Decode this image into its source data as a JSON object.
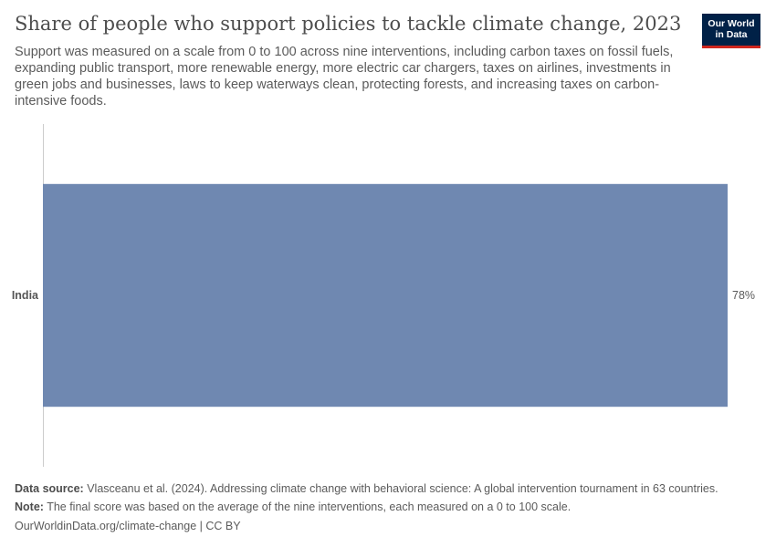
{
  "header": {
    "title": "Share of people who support policies to tackle climate change, 2023",
    "subtitle": "Support was measured on a scale from 0 to 100 across nine interventions, including carbon taxes on fossil fuels, expanding public transport, more renewable energy, more electric car chargers, taxes on airlines, investments in green jobs and businesses, laws to keep waterways clean, protecting forests, and increasing taxes on carbon-intensive foods."
  },
  "logo": {
    "line1": "Our World",
    "line2": "in Data"
  },
  "chart_data": {
    "type": "bar",
    "orientation": "horizontal",
    "categories": [
      "India"
    ],
    "values": [
      78
    ],
    "value_labels": [
      "78%"
    ],
    "xlim": [
      0,
      78
    ],
    "bar_color": "#6f88b1"
  },
  "footer": {
    "source_label": "Data source:",
    "source_text": " Vlasceanu et al. (2024). Addressing climate change with behavioral science: A global intervention tournament in 63 countries.",
    "note_label": "Note:",
    "note_text": " The final score was based on the average of the nine interventions, each measured on a 0 to 100 scale.",
    "url": "OurWorldinData.org/climate-change | CC BY"
  }
}
